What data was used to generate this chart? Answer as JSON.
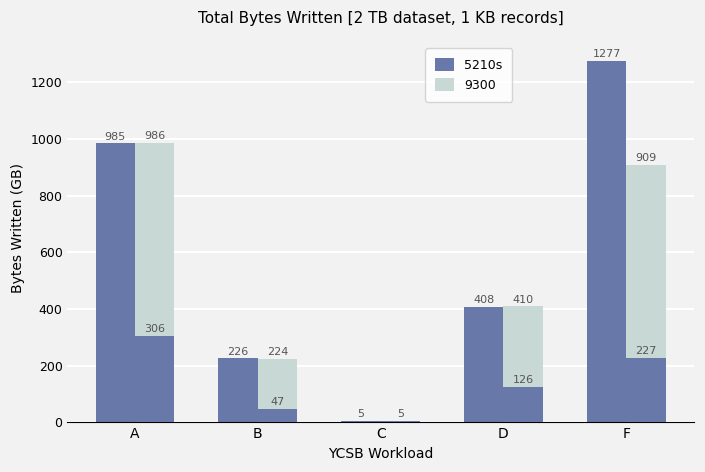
{
  "title": "Total Bytes Written [2 TB dataset, 1 KB records]",
  "xlabel": "YCSB Workload",
  "ylabel": "Bytes Written (GB)",
  "categories": [
    "A",
    "B",
    "C",
    "D",
    "F"
  ],
  "vals_5210s": [
    985,
    226,
    5,
    408,
    1277
  ],
  "vals_9300": [
    986,
    224,
    5,
    410,
    909
  ],
  "vals_9300_dark_bottom": [
    306,
    47,
    5,
    126,
    227
  ],
  "color_5210s": "#6878a8",
  "color_9300_light": "#c8d8d5",
  "ylim": [
    0,
    1370
  ],
  "yticks": [
    0,
    200,
    400,
    600,
    800,
    1000,
    1200
  ],
  "bar_width": 0.32,
  "background_color": "#f2f2f2",
  "grid_color": "#ffffff",
  "label_fontsize": 8,
  "title_fontsize": 11,
  "axis_fontsize": 10
}
